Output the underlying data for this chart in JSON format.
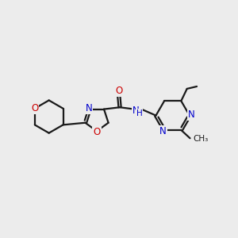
{
  "background_color": "#ececec",
  "bond_color": "#1a1a1a",
  "N_color": "#0000cc",
  "O_color": "#cc0000",
  "line_width": 1.6,
  "font_size": 8.5,
  "figsize": [
    3.0,
    3.0
  ],
  "dpi": 100,
  "xlim": [
    0,
    10
  ],
  "ylim": [
    0,
    10
  ]
}
